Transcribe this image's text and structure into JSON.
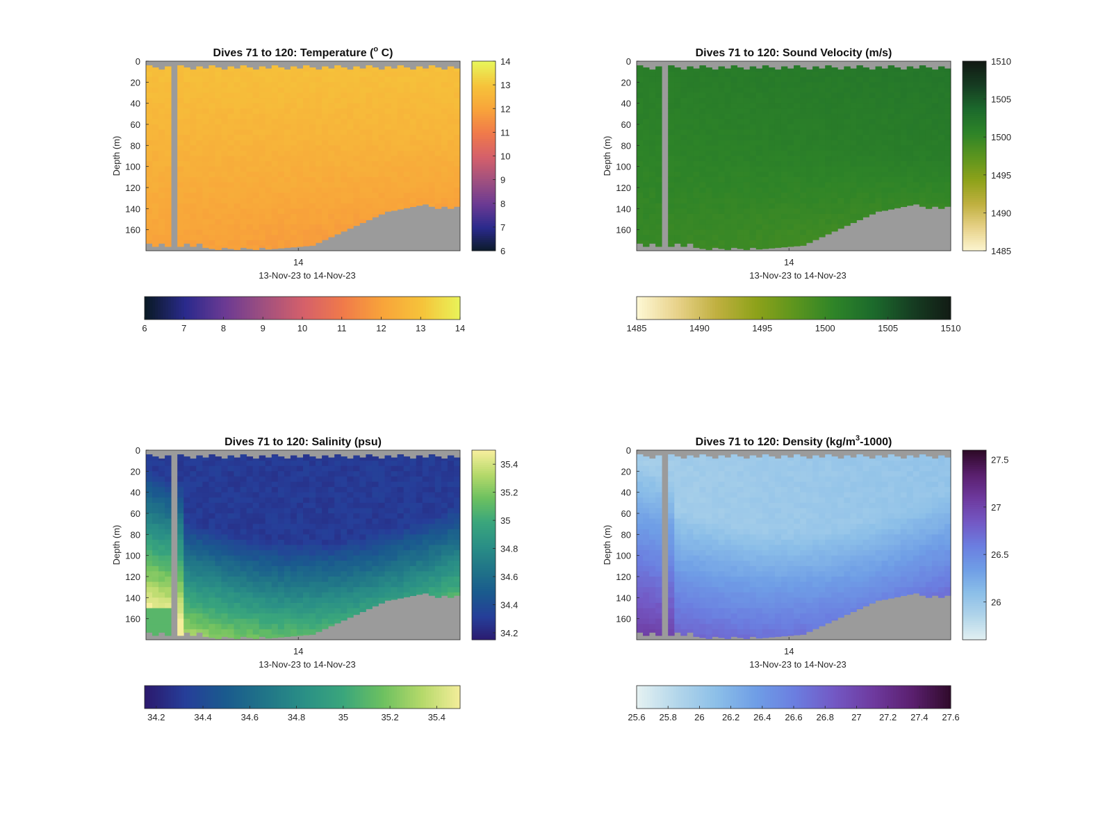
{
  "chart_data": [
    {
      "type": "heatmap",
      "title": "Dives 71 to 120: Temperature (",
      "title_sup": "o",
      "title_suffix": " C)",
      "ylabel": "Depth (m)",
      "xlabel": "13-Nov-23 to 14-Nov-23",
      "x_tick_labels": [
        "14"
      ],
      "y_ticks": [
        0,
        20,
        40,
        60,
        80,
        100,
        120,
        140,
        160
      ],
      "ylim": [
        0,
        180
      ],
      "y_reversed": true,
      "colorbar_label": "",
      "colormap": [
        "#0a1a26",
        "#2a2a8c",
        "#6b3a93",
        "#a0507f",
        "#d5606a",
        "#f07a4a",
        "#f8a43a",
        "#f6c33a",
        "#e8f55a"
      ],
      "cbar_range": [
        6,
        14
      ],
      "cbar_ticks": [
        6,
        7,
        8,
        9,
        10,
        11,
        12,
        13,
        14
      ],
      "hcbar_ticks": [
        6,
        7,
        8,
        9,
        10,
        11,
        12,
        13,
        14
      ],
      "field": {
        "surface": 12.85,
        "bottom": 11.7,
        "gradient": "deep-warmer-left"
      },
      "gap_near_dives": [
        75,
        76
      ],
      "missing_color": "#9b9b9b"
    },
    {
      "type": "heatmap",
      "title": "Dives 71 to 120: Sound Velocity (m/s)",
      "title_sup": "",
      "title_suffix": "",
      "ylabel": "Depth (m)",
      "xlabel": "13-Nov-23 to 14-Nov-23",
      "x_tick_labels": [
        "14"
      ],
      "y_ticks": [
        0,
        20,
        40,
        60,
        80,
        100,
        120,
        140,
        160
      ],
      "ylim": [
        0,
        180
      ],
      "y_reversed": true,
      "colormap": [
        "#fdf7d3",
        "#e8d28a",
        "#c0b040",
        "#8ea21a",
        "#5c951e",
        "#2e8428",
        "#1c6a2c",
        "#163d22",
        "#121a14"
      ],
      "cbar_range": [
        1485,
        1510
      ],
      "cbar_ticks": [
        1510,
        1505,
        1500,
        1495,
        1490,
        1485
      ],
      "hcbar_ticks": [
        1485,
        1490,
        1495,
        1500,
        1505,
        1510
      ],
      "field": {
        "surface": 1501.0,
        "bottom": 1498.5
      },
      "missing_color": "#9b9b9b"
    },
    {
      "type": "heatmap",
      "title": "Dives 71 to 120: Salinity (psu)",
      "title_sup": "",
      "title_suffix": "",
      "ylabel": "Depth (m)",
      "xlabel": "13-Nov-23 to 14-Nov-23",
      "x_tick_labels": [
        "14"
      ],
      "y_ticks": [
        0,
        20,
        40,
        60,
        80,
        100,
        120,
        140,
        160
      ],
      "ylim": [
        0,
        180
      ],
      "y_reversed": true,
      "colormap": [
        "#2b1a6e",
        "#263e99",
        "#1a5a8e",
        "#207488",
        "#2a8f86",
        "#3aa67c",
        "#6cc060",
        "#b5d96a",
        "#f6ee9c"
      ],
      "cbar_range": [
        34.15,
        35.5
      ],
      "cbar_ticks": [
        35.4,
        35.2,
        35,
        34.8,
        34.6,
        34.4,
        34.2
      ],
      "hcbar_ticks": [
        34.2,
        34.4,
        34.6,
        34.8,
        35,
        35.2,
        35.4
      ],
      "field": {
        "surface": 34.3,
        "bottom": 35.25
      },
      "missing_color": "#9b9b9b"
    },
    {
      "type": "heatmap",
      "title": "Dives 71 to 120: Density (kg/m",
      "title_sup": "3",
      "title_suffix": "-1000)",
      "ylabel": "Depth (m)",
      "xlabel": "13-Nov-23 to 14-Nov-23",
      "x_tick_labels": [
        "14"
      ],
      "y_ticks": [
        0,
        20,
        40,
        60,
        80,
        100,
        120,
        140,
        160
      ],
      "ylim": [
        0,
        180
      ],
      "y_reversed": true,
      "colormap": [
        "#e4f1f2",
        "#b3d6ea",
        "#8cbfe8",
        "#6f9ee6",
        "#6b7ee0",
        "#7358c4",
        "#6e3a9e",
        "#5a1f6e",
        "#2e0a28"
      ],
      "cbar_range": [
        25.6,
        27.6
      ],
      "cbar_ticks": [
        27.5,
        27,
        26.5,
        26
      ],
      "hcbar_ticks": [
        25.6,
        25.8,
        26,
        26.2,
        26.4,
        26.6,
        26.8,
        27,
        27.2,
        27.4,
        27.6
      ],
      "field": {
        "surface": 26.0,
        "bottom": 26.85
      },
      "missing_color": "#9b9b9b"
    }
  ]
}
